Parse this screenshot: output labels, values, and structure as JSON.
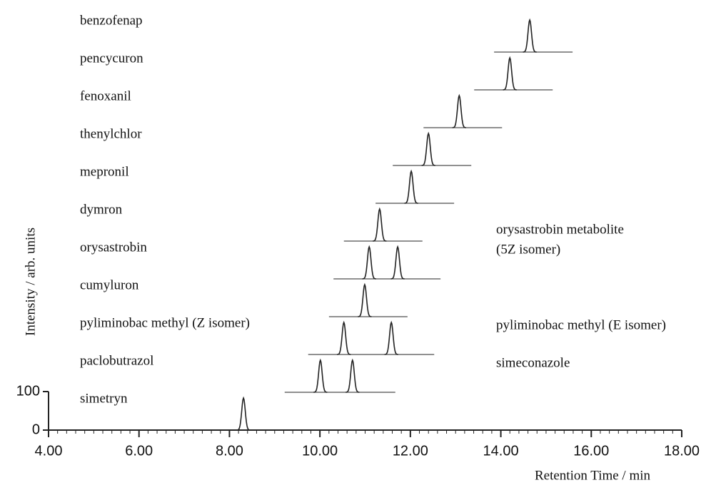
{
  "chart_data": {
    "type": "chromatogram",
    "x_label": "Retention Time / min",
    "y_label": "Intensity / arb. units",
    "xlim": [
      4,
      18
    ],
    "xticks": [
      {
        "value": 4,
        "label": "4.00"
      },
      {
        "value": 6,
        "label": "6.00"
      },
      {
        "value": 8,
        "label": "8.00"
      },
      {
        "value": 10,
        "label": "10.00"
      },
      {
        "value": 12,
        "label": "12.00"
      },
      {
        "value": 14,
        "label": "14.00"
      },
      {
        "value": 16,
        "label": "16.00"
      },
      {
        "value": 18,
        "label": "18.00"
      }
    ],
    "ylim": [
      0,
      100
    ],
    "yticks": [
      0,
      100
    ],
    "color": "#222222",
    "series": [
      {
        "name": "simetryn",
        "peaks": [
          8.31
        ]
      },
      {
        "name": "paclobutrazol",
        "peaks": [
          10.01,
          10.72
        ],
        "second_name": [
          "simeconazole"
        ]
      },
      {
        "name": "pyliminobac methyl (Z isomer)",
        "peaks": [
          10.53,
          11.58
        ],
        "second_name": [
          "pyliminobac methyl (E isomer)"
        ]
      },
      {
        "name": "cumyluron",
        "peaks": [
          10.99
        ]
      },
      {
        "name": "orysastrobin",
        "peaks": [
          11.09,
          11.72
        ],
        "second_name": [
          "orysastrobin metabolite",
          "(5Z isomer)"
        ]
      },
      {
        "name": "dymron",
        "peaks": [
          11.32
        ]
      },
      {
        "name": "mepronil",
        "peaks": [
          12.02
        ]
      },
      {
        "name": "thenylchlor",
        "peaks": [
          12.4
        ]
      },
      {
        "name": "fenoxanil",
        "peaks": [
          13.08
        ]
      },
      {
        "name": "pencycuron",
        "peaks": [
          14.2
        ]
      },
      {
        "name": "benzofenap",
        "peaks": [
          14.64
        ]
      }
    ]
  }
}
